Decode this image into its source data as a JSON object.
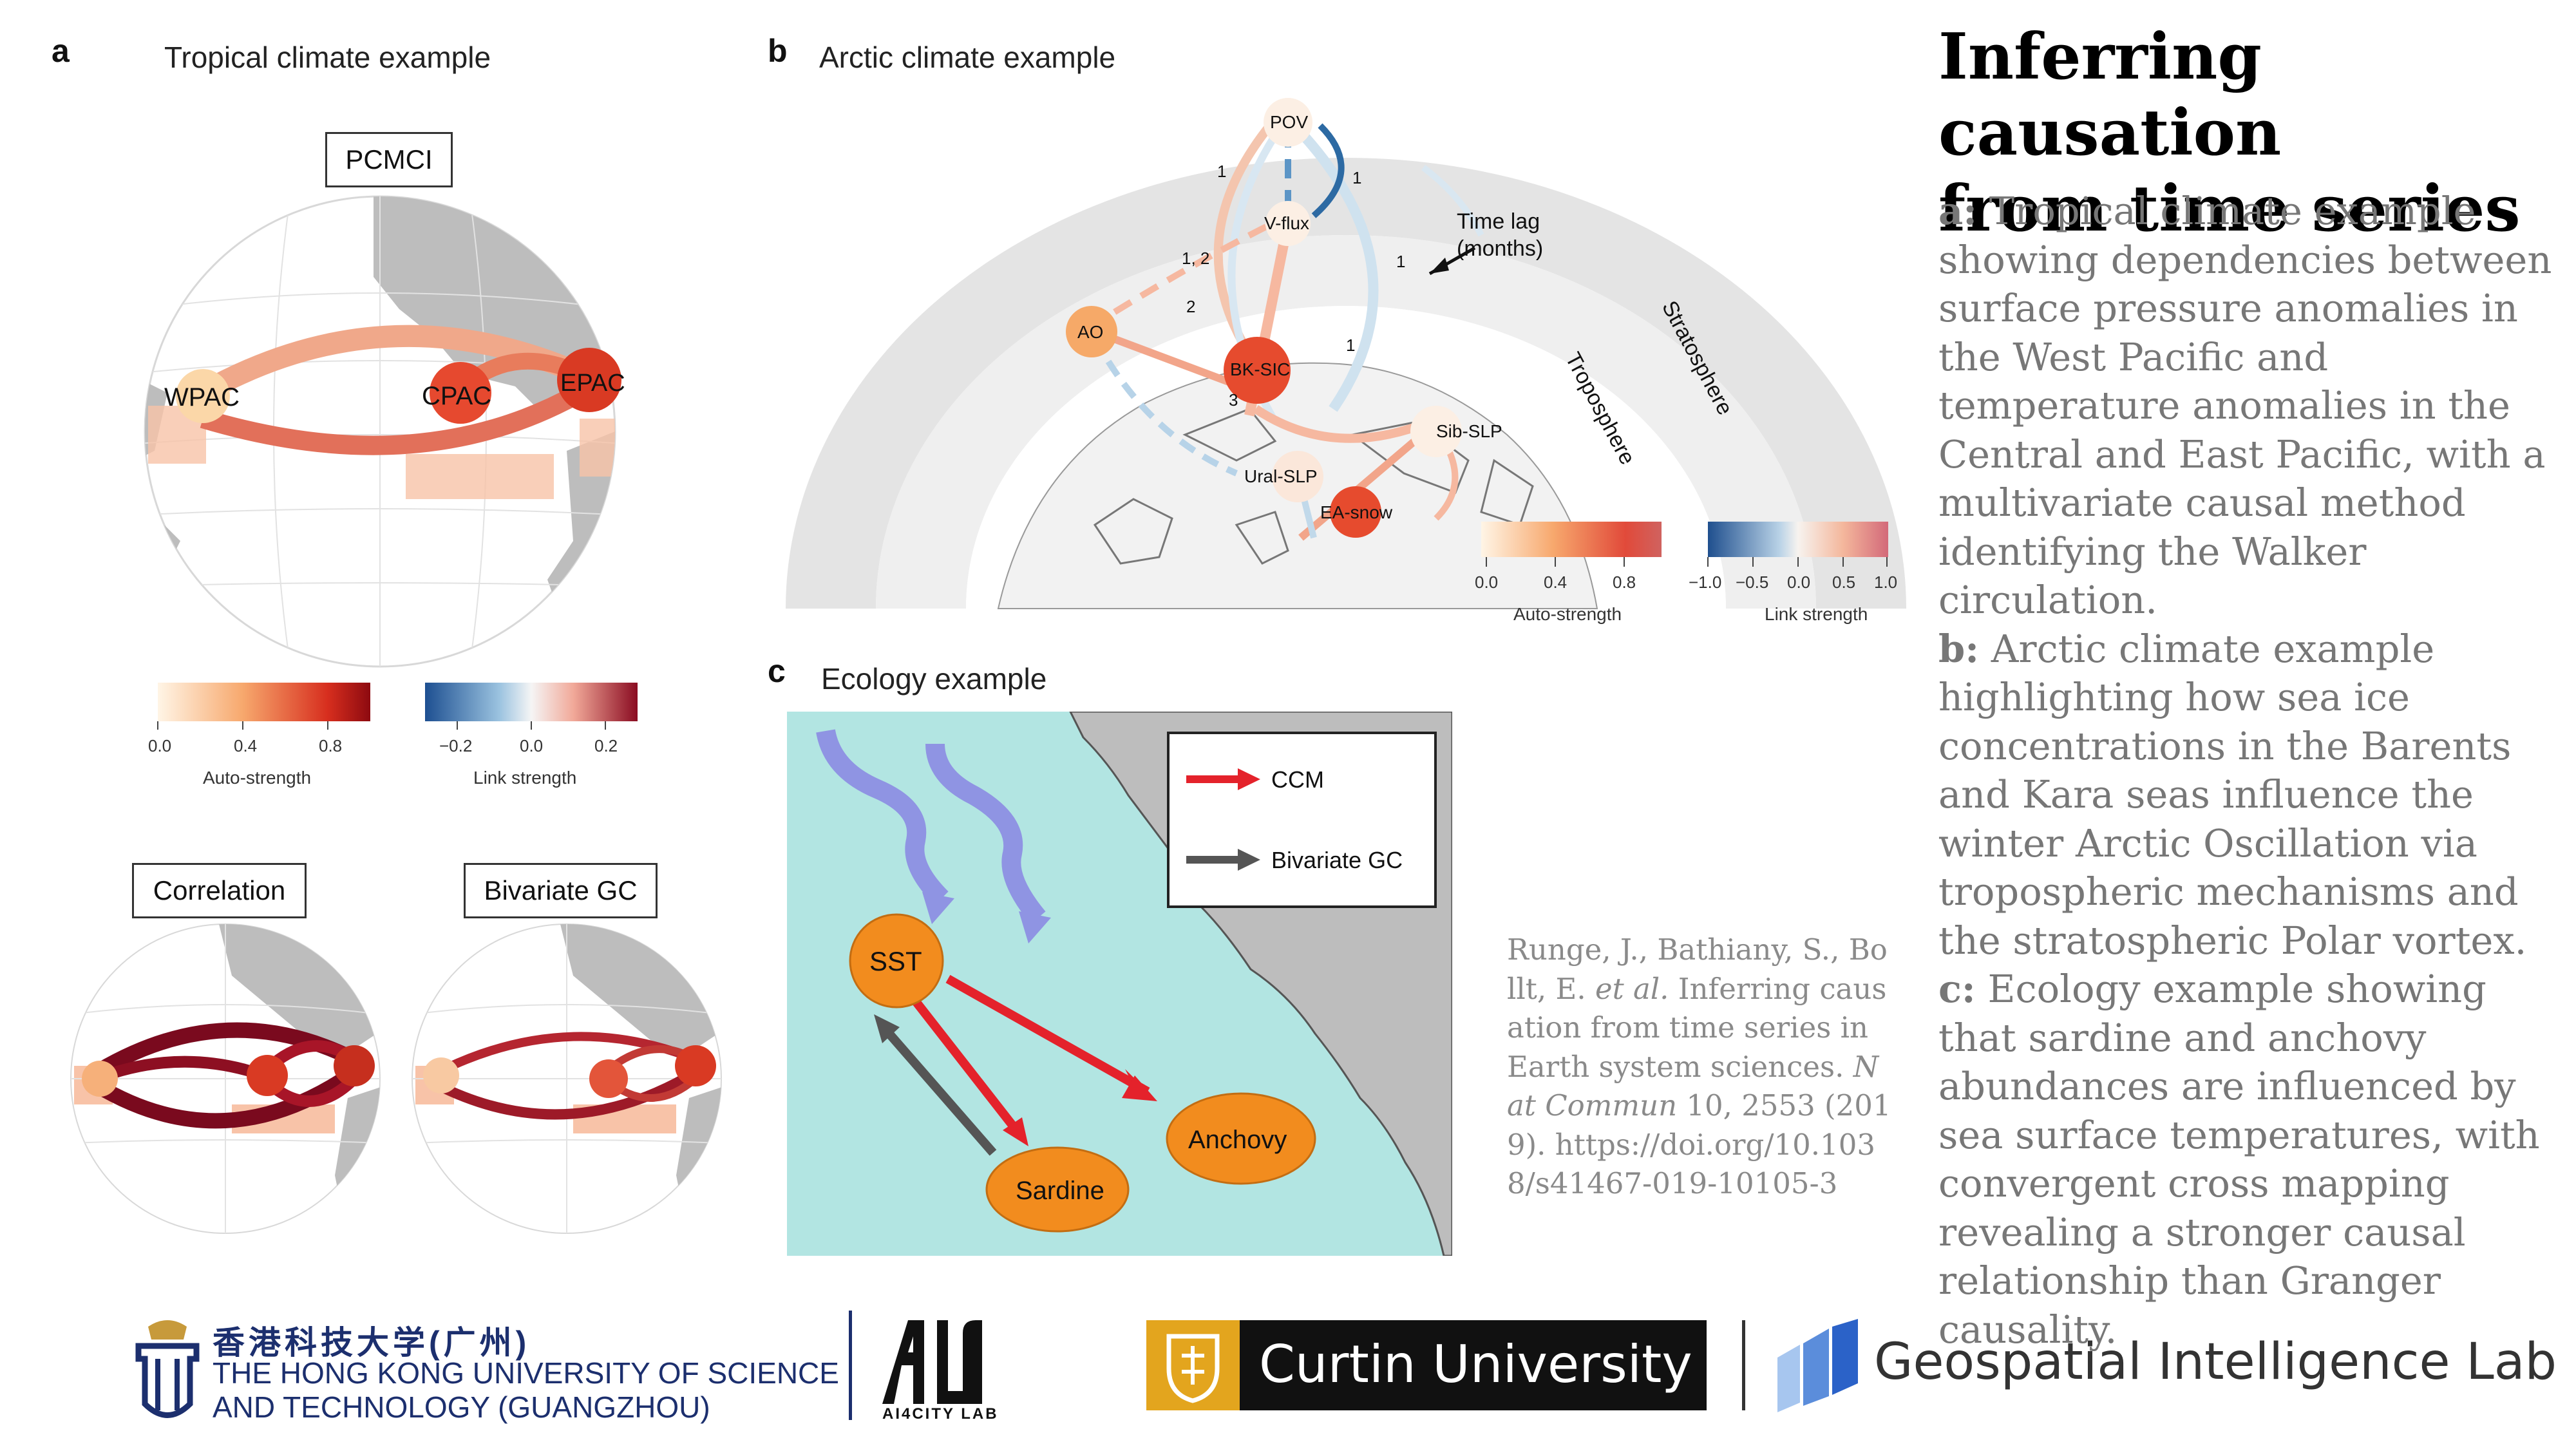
{
  "panel_a": {
    "letter": "a",
    "title": "Tropical climate example",
    "method_main": "PCMCI",
    "method_corr": "Correlation",
    "method_gc": "Bivariate GC",
    "nodes": [
      "WPAC",
      "CPAC",
      "EPAC"
    ],
    "auto_colorbar": {
      "label": "Auto-strength",
      "ticks": [
        "0.0",
        "0.4",
        "0.8"
      ]
    },
    "link_colorbar": {
      "label": "Link strength",
      "ticks": [
        "−0.2",
        "0.0",
        "0.2"
      ]
    }
  },
  "panel_b": {
    "letter": "b",
    "title": "Arctic climate example",
    "nodes": [
      "POV",
      "V-flux",
      "AO",
      "BK-SIC",
      "Sib-SLP",
      "Ural-SLP",
      "EA-snow"
    ],
    "lag_labels": [
      "1",
      "1",
      "1, 2",
      "2",
      "1",
      "1",
      "3"
    ],
    "time_lag_annotation": [
      "Time lag",
      "(months)"
    ],
    "layer_labels": [
      "Stratosphere",
      "Troposphere"
    ],
    "auto_colorbar": {
      "label": "Auto-strength",
      "ticks": [
        "0.0",
        "0.4",
        "0.8"
      ]
    },
    "link_colorbar": {
      "label": "Link strength",
      "ticks": [
        "−1.0",
        "−0.5",
        "0.0",
        "0.5",
        "1.0"
      ]
    }
  },
  "panel_c": {
    "letter": "c",
    "title": "Ecology example",
    "nodes": [
      "SST",
      "Sardine",
      "Anchovy"
    ],
    "legend": [
      {
        "label": "CCM",
        "color": "#e4222b"
      },
      {
        "label": "Bivariate GC",
        "color": "#555555"
      }
    ]
  },
  "title_line1": "Inferring causation",
  "title_line2": "from time series",
  "description": {
    "a_label": "a:",
    "a_text": " Tropical climate example showing dependencies between surface pressure anomalies in the West Pacific and temperature anomalies in the Central and East Pacific, with a multivariate causal method identifying the Walker circulation.",
    "b_label": "b:",
    "b_text": " Arctic climate example highlighting how sea ice concentrations in the Barents and Kara seas influence the winter Arctic Oscillation via tropospheric mechanisms and the stratospheric Polar vortex.",
    "c_label": "c:",
    "c_text": " Ecology example showing that sardine and anchovy abundances are influenced by sea surface temperatures, with convergent cross mapping revealing a stronger causal relationship than Granger causality."
  },
  "citation": {
    "part1": "Runge, J., Bathiany, S., Bollt, E. ",
    "etal": "et al.",
    "part2": " Inferring causation from time series in Earth system sciences. ",
    "journal": "Nat Commun",
    "part3": " 10, 2553 (2019). https://doi.org/10.1038/s41467-019-10105-3"
  },
  "logos": {
    "hkust_cn": "香港科技大学(广州)",
    "hkust_en1": "THE HONG KONG UNIVERSITY OF SCIENCE",
    "hkust_en2": "AND TECHNOLOGY (GUANGZHOU)",
    "ai4city": "AI4CITY LAB",
    "curtin": "Curtin University",
    "gil": "Geospatial Intelligence Lab"
  },
  "colors": {
    "ocean": "#b2e5e2",
    "land": "#bdbdbd",
    "node_orange": "#f28c1e",
    "ccm_red": "#e4222b",
    "gc_gray": "#555555",
    "curtin_gold": "#e3a51e",
    "hkust_blue": "#1c2f6e",
    "gil_blue": "#2b62c8",
    "text_gray": "#777777"
  }
}
